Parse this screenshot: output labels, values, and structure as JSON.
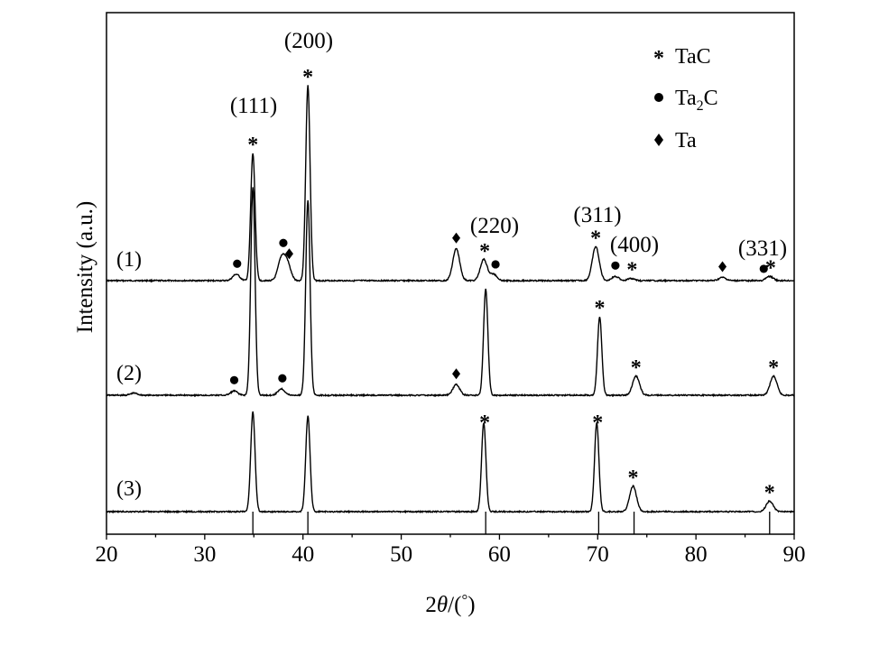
{
  "chart_data": {
    "type": "line",
    "xlabel_parts": [
      "2",
      "θ",
      "/(",
      "°",
      ")"
    ],
    "ylabel": "Intensity (a.u.)",
    "xlim": [
      20,
      90
    ],
    "x_ticks": [
      20,
      30,
      40,
      50,
      60,
      70,
      80,
      90
    ],
    "grid": false,
    "legend_position": "top-right",
    "legend": [
      {
        "marker": "star",
        "label": "TaC"
      },
      {
        "marker": "circle",
        "label": "Ta",
        "sub": "2",
        "tail": "C"
      },
      {
        "marker": "diamond",
        "label": "Ta"
      }
    ],
    "series": [
      {
        "name": "(1)",
        "baseline": 0,
        "peaks": [
          {
            "x": 33.2,
            "h": 3
          },
          {
            "x": 37.8,
            "h": 10
          },
          {
            "x": 38.4,
            "h": 8
          },
          {
            "x": 34.9,
            "h": 60
          },
          {
            "x": 40.5,
            "h": 92
          },
          {
            "x": 55.6,
            "h": 15
          },
          {
            "x": 58.4,
            "h": 10
          },
          {
            "x": 59.4,
            "h": 3
          },
          {
            "x": 69.8,
            "h": 16
          },
          {
            "x": 71.8,
            "h": 2
          },
          {
            "x": 73.4,
            "h": 1
          },
          {
            "x": 82.7,
            "h": 1.5
          },
          {
            "x": 87.5,
            "h": 2
          }
        ]
      },
      {
        "name": "(2)",
        "baseline": 0,
        "peaks": [
          {
            "x": 22.8,
            "h": 1
          },
          {
            "x": 33.0,
            "h": 2
          },
          {
            "x": 37.8,
            "h": 3
          },
          {
            "x": 34.9,
            "h": 98
          },
          {
            "x": 40.5,
            "h": 92
          },
          {
            "x": 55.6,
            "h": 5
          },
          {
            "x": 58.6,
            "h": 50
          },
          {
            "x": 70.2,
            "h": 37
          },
          {
            "x": 73.9,
            "h": 9
          },
          {
            "x": 87.9,
            "h": 9
          }
        ]
      },
      {
        "name": "(3)",
        "baseline": 0,
        "peaks": [
          {
            "x": 34.9,
            "h": 47
          },
          {
            "x": 40.5,
            "h": 45
          },
          {
            "x": 58.4,
            "h": 42
          },
          {
            "x": 69.9,
            "h": 42
          },
          {
            "x": 73.6,
            "h": 12
          },
          {
            "x": 87.5,
            "h": 5
          }
        ]
      }
    ],
    "reference_lines": [
      34.9,
      40.5,
      58.6,
      70.1,
      73.7,
      87.5
    ],
    "peak_labels": [
      {
        "text": "(200)",
        "x": 40.5,
        "series": 0
      },
      {
        "text": "(111)",
        "x": 34.9,
        "series": 0
      },
      {
        "text": "(220)",
        "x": 58.6,
        "series": 0
      },
      {
        "text": "(311)",
        "x": 69.8,
        "series": 0
      },
      {
        "text": "(400)",
        "x": 73.4,
        "series": 0
      },
      {
        "text": "(331)",
        "x": 87.5,
        "series": 0
      }
    ],
    "markers": [
      {
        "type": "star",
        "x": 34.9,
        "series": 0
      },
      {
        "type": "star",
        "x": 40.5,
        "series": 0
      },
      {
        "type": "circle",
        "x": 33.3,
        "series": 0
      },
      {
        "type": "circle",
        "x": 38.0,
        "series": 0
      },
      {
        "type": "diamond",
        "x": 38.6,
        "series": 0
      },
      {
        "type": "diamond",
        "x": 55.6,
        "series": 0
      },
      {
        "type": "star",
        "x": 58.5,
        "series": 0
      },
      {
        "type": "circle",
        "x": 59.6,
        "series": 0
      },
      {
        "type": "star",
        "x": 69.8,
        "series": 0
      },
      {
        "type": "circle",
        "x": 71.8,
        "series": 0
      },
      {
        "type": "star",
        "x": 73.5,
        "series": 0
      },
      {
        "type": "diamond",
        "x": 82.7,
        "series": 0
      },
      {
        "type": "circle",
        "x": 86.9,
        "series": 0
      },
      {
        "type": "star",
        "x": 87.6,
        "series": 0
      },
      {
        "type": "circle",
        "x": 33.0,
        "series": 1
      },
      {
        "type": "circle",
        "x": 37.9,
        "series": 1
      },
      {
        "type": "diamond",
        "x": 55.6,
        "series": 1
      },
      {
        "type": "star",
        "x": 70.2,
        "series": 1
      },
      {
        "type": "star",
        "x": 73.9,
        "series": 1
      },
      {
        "type": "star",
        "x": 87.9,
        "series": 1
      },
      {
        "type": "star",
        "x": 58.5,
        "series": 2
      },
      {
        "type": "star",
        "x": 70.0,
        "series": 2
      },
      {
        "type": "star",
        "x": 73.6,
        "series": 2
      },
      {
        "type": "star",
        "x": 87.5,
        "series": 2
      }
    ]
  }
}
